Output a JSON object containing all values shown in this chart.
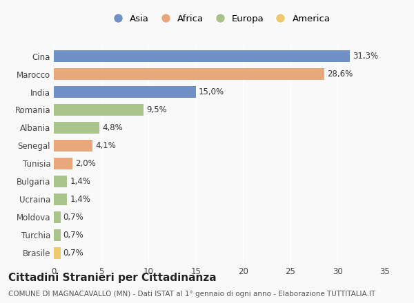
{
  "categories": [
    "Brasile",
    "Turchia",
    "Moldova",
    "Ucraina",
    "Bulgaria",
    "Tunisia",
    "Senegal",
    "Albania",
    "Romania",
    "India",
    "Marocco",
    "Cina"
  ],
  "values": [
    0.7,
    0.7,
    0.7,
    1.4,
    1.4,
    2.0,
    4.1,
    4.8,
    9.5,
    15.0,
    28.6,
    31.3
  ],
  "labels": [
    "0,7%",
    "0,7%",
    "0,7%",
    "1,4%",
    "1,4%",
    "2,0%",
    "4,1%",
    "4,8%",
    "9,5%",
    "15,0%",
    "28,6%",
    "31,3%"
  ],
  "colors": [
    "#f0c96e",
    "#a8c48a",
    "#a8c48a",
    "#a8c48a",
    "#a8c48a",
    "#e8a87c",
    "#e8a87c",
    "#a8c48a",
    "#a8c48a",
    "#7090c8",
    "#e8a87c",
    "#7090c8"
  ],
  "legend_labels": [
    "Asia",
    "Africa",
    "Europa",
    "America"
  ],
  "legend_colors": [
    "#7090c8",
    "#e8a87c",
    "#a8c48a",
    "#f0c96e"
  ],
  "title": "Cittadini Stranieri per Cittadinanza",
  "subtitle": "COMUNE DI MAGNACAVALLO (MN) - Dati ISTAT al 1° gennaio di ogni anno - Elaborazione TUTTITALIA.IT",
  "xlim": [
    0,
    35
  ],
  "xticks": [
    0,
    5,
    10,
    15,
    20,
    25,
    30,
    35
  ],
  "background_color": "#f9f9f9",
  "bar_height": 0.65,
  "title_fontsize": 11,
  "subtitle_fontsize": 7.5,
  "label_fontsize": 8.5,
  "tick_fontsize": 8.5,
  "legend_fontsize": 9.5
}
